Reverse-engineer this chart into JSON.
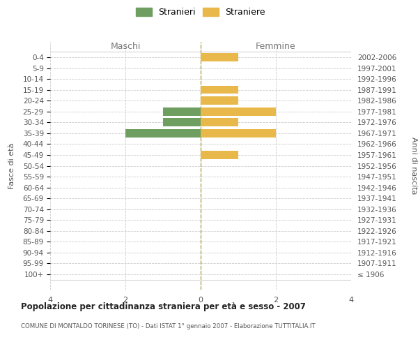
{
  "age_groups": [
    "100+",
    "95-99",
    "90-94",
    "85-89",
    "80-84",
    "75-79",
    "70-74",
    "65-69",
    "60-64",
    "55-59",
    "50-54",
    "45-49",
    "40-44",
    "35-39",
    "30-34",
    "25-29",
    "20-24",
    "15-19",
    "10-14",
    "5-9",
    "0-4"
  ],
  "birth_years": [
    "≤ 1906",
    "1907-1911",
    "1912-1916",
    "1917-1921",
    "1922-1926",
    "1927-1931",
    "1932-1936",
    "1937-1941",
    "1942-1946",
    "1947-1951",
    "1952-1956",
    "1957-1961",
    "1962-1966",
    "1967-1971",
    "1972-1976",
    "1977-1981",
    "1982-1986",
    "1987-1991",
    "1992-1996",
    "1997-2001",
    "2002-2006"
  ],
  "maschi": [
    0,
    0,
    0,
    0,
    0,
    0,
    0,
    0,
    0,
    0,
    0,
    0,
    0,
    -2,
    -1,
    -1,
    0,
    0,
    0,
    0,
    0
  ],
  "femmine": [
    0,
    0,
    0,
    0,
    0,
    0,
    0,
    0,
    0,
    0,
    0,
    1,
    0,
    2,
    1,
    2,
    1,
    1,
    0,
    0,
    1
  ],
  "male_color": "#6e9e60",
  "female_color": "#e8b84b",
  "xlim": [
    -4,
    4
  ],
  "xticks": [
    -4,
    -2,
    0,
    2,
    4
  ],
  "xticklabels": [
    "4",
    "2",
    "0",
    "2",
    "4"
  ],
  "title": "Popolazione per cittadinanza straniera per età e sesso - 2007",
  "subtitle": "COMUNE DI MONTALDO TORINESE (TO) - Dati ISTAT 1° gennaio 2007 - Elaborazione TUTTITALIA.IT",
  "ylabel_left": "Fasce di età",
  "ylabel_right": "Anni di nascita",
  "label_maschi": "Maschi",
  "label_femmine": "Femmine",
  "legend_stranieri": "Stranieri",
  "legend_straniere": "Straniere",
  "bg_color": "#ffffff",
  "grid_color": "#cccccc",
  "bar_height": 0.75
}
